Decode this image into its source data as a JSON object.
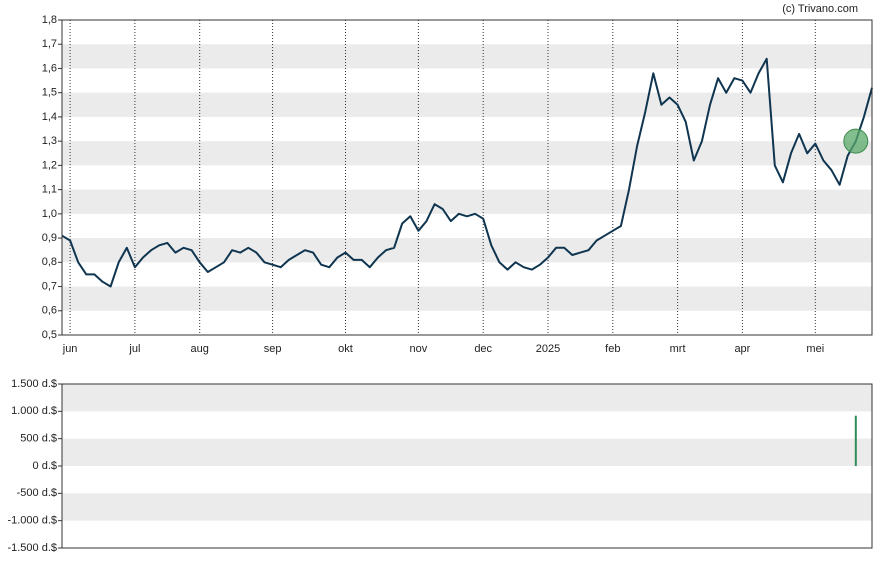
{
  "source": "(c) Trivano.com",
  "chart_data": [
    {
      "type": "line",
      "categories": [
        null,
        "jun",
        null,
        null,
        null,
        null,
        null,
        null,
        null,
        "jul",
        null,
        null,
        null,
        null,
        null,
        null,
        null,
        "aug",
        null,
        null,
        null,
        null,
        null,
        null,
        null,
        null,
        "sep",
        null,
        null,
        null,
        null,
        null,
        null,
        null,
        null,
        "okt",
        null,
        null,
        null,
        null,
        null,
        null,
        null,
        null,
        "nov",
        null,
        null,
        null,
        null,
        null,
        null,
        null,
        "dec",
        null,
        null,
        null,
        null,
        null,
        null,
        null,
        "2025",
        null,
        null,
        null,
        null,
        null,
        null,
        null,
        "feb",
        null,
        null,
        null,
        null,
        null,
        null,
        null,
        "mrt",
        null,
        null,
        null,
        null,
        null,
        null,
        null,
        "apr",
        null,
        null,
        null,
        null,
        null,
        null,
        null,
        null,
        "mei",
        null,
        null,
        null,
        null,
        null,
        null,
        null
      ],
      "values": [
        0.91,
        0.89,
        0.8,
        0.75,
        0.75,
        0.72,
        0.7,
        0.8,
        0.86,
        0.78,
        0.82,
        0.85,
        0.87,
        0.88,
        0.84,
        0.86,
        0.85,
        0.8,
        0.76,
        0.78,
        0.8,
        0.85,
        0.84,
        0.86,
        0.84,
        0.8,
        0.79,
        0.78,
        0.81,
        0.83,
        0.85,
        0.84,
        0.79,
        0.78,
        0.82,
        0.84,
        0.81,
        0.81,
        0.78,
        0.82,
        0.85,
        0.86,
        0.96,
        0.99,
        0.93,
        0.97,
        1.04,
        1.02,
        0.97,
        1.0,
        0.99,
        1.0,
        0.98,
        0.87,
        0.8,
        0.77,
        0.8,
        0.78,
        0.77,
        0.79,
        0.82,
        0.86,
        0.86,
        0.83,
        0.84,
        0.85,
        0.89,
        0.91,
        0.93,
        0.95,
        1.1,
        1.28,
        1.42,
        1.58,
        1.45,
        1.48,
        1.45,
        1.38,
        1.22,
        1.3,
        1.45,
        1.56,
        1.5,
        1.56,
        1.55,
        1.5,
        1.58,
        1.64,
        1.2,
        1.13,
        1.25,
        1.33,
        1.25,
        1.29,
        1.22,
        1.18,
        1.12,
        1.24,
        1.3,
        1.4,
        1.52
      ],
      "color": "#0f3550",
      "marker_index": 98,
      "marker_color": "#5aa86a",
      "ylim": [
        0.5,
        1.8
      ],
      "yticks": [
        {
          "value": 0.5,
          "label": "0,5"
        },
        {
          "value": 0.6,
          "label": "0,6"
        },
        {
          "value": 0.7,
          "label": "0,7"
        },
        {
          "value": 0.8,
          "label": "0,8"
        },
        {
          "value": 0.9,
          "label": "0,9"
        },
        {
          "value": 1.0,
          "label": "1,0"
        },
        {
          "value": 1.1,
          "label": "1,1"
        },
        {
          "value": 1.2,
          "label": "1,2"
        },
        {
          "value": 1.3,
          "label": "1,3"
        },
        {
          "value": 1.4,
          "label": "1,4"
        },
        {
          "value": 1.5,
          "label": "1,5"
        },
        {
          "value": 1.6,
          "label": "1,6"
        },
        {
          "value": 1.7,
          "label": "1,7"
        },
        {
          "value": 1.8,
          "label": "1,8"
        }
      ],
      "grid": true
    },
    {
      "type": "bar",
      "values": [
        0,
        0,
        0,
        0,
        0,
        0,
        0,
        0,
        0,
        0,
        0,
        0,
        0,
        0,
        0,
        0,
        0,
        0,
        0,
        0,
        0,
        0,
        0,
        0,
        0,
        0,
        0,
        0,
        0,
        0,
        0,
        0,
        0,
        0,
        0,
        0,
        0,
        0,
        0,
        0,
        0,
        0,
        0,
        0,
        0,
        0,
        0,
        0,
        0,
        0,
        0,
        0,
        0,
        0,
        0,
        0,
        0,
        0,
        0,
        0,
        0,
        0,
        0,
        0,
        0,
        0,
        0,
        0,
        0,
        0,
        0,
        0,
        0,
        0,
        0,
        0,
        0,
        0,
        0,
        0,
        0,
        0,
        0,
        0,
        0,
        0,
        0,
        0,
        0,
        0,
        0,
        0,
        0,
        0,
        0,
        0,
        0,
        0,
        920,
        0,
        0
      ],
      "color": "#2e8b57",
      "ylim": [
        -1500,
        1500
      ],
      "yticks": [
        {
          "value": -1500,
          "label": "-1.500 d.$"
        },
        {
          "value": -1000,
          "label": "-1.000 d.$"
        },
        {
          "value": -500,
          "label": "-500 d.$"
        },
        {
          "value": 0,
          "label": "0 d.$"
        },
        {
          "value": 500,
          "label": "500 d.$"
        },
        {
          "value": 1000,
          "label": "1.000 d.$"
        },
        {
          "value": 1500,
          "label": "1.500 d.$"
        }
      ],
      "grid": true
    }
  ]
}
